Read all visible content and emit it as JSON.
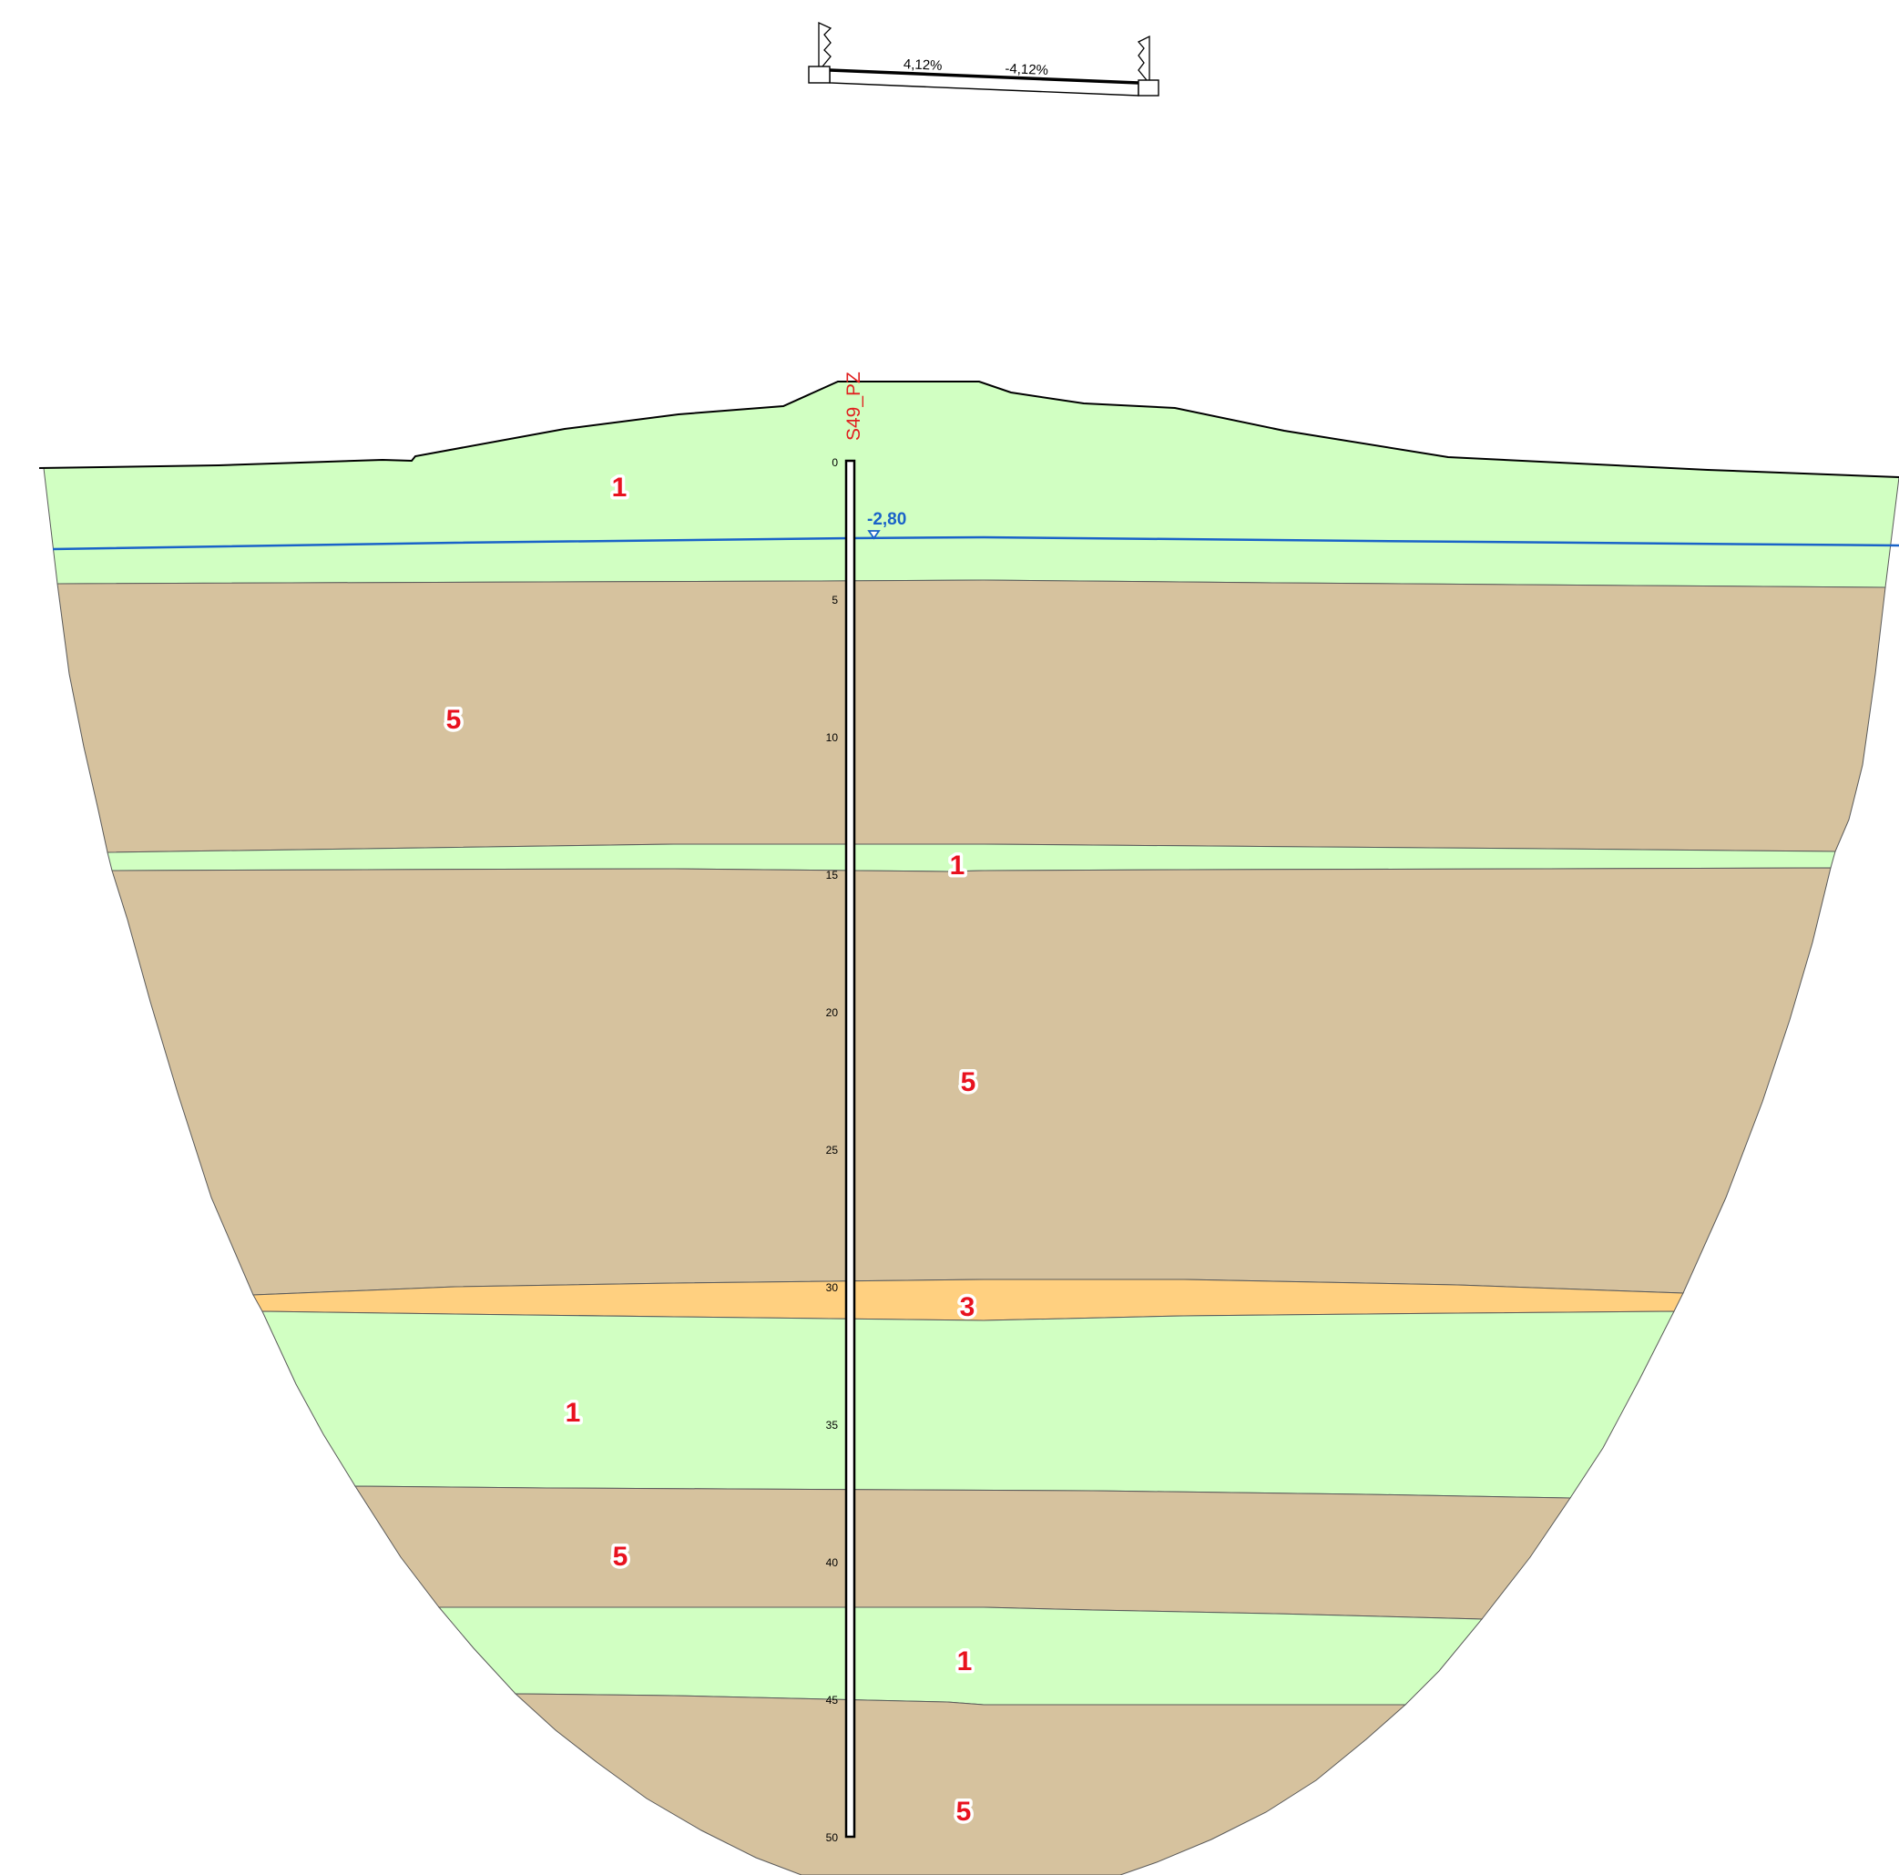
{
  "colors": {
    "layer_1": "#d1ffc2",
    "layer_3": "#ffd080",
    "layer_5": "#d6c29e",
    "groundwater": "#1a63c8",
    "label_red": "#e8121f"
  },
  "cross_section": {
    "slope_left": "4,12%",
    "slope_right": "-4,12%"
  },
  "borehole": {
    "name": "S49_PZ",
    "depth_ticks": [
      "0",
      "5",
      "10",
      "15",
      "20",
      "25",
      "30",
      "35",
      "40",
      "45",
      "50"
    ]
  },
  "groundwater": {
    "level_label": "-2,80"
  },
  "layer_labels": {
    "l1": "1",
    "l2": "5",
    "l3": "1",
    "l4": "5",
    "l5": "3",
    "l6": "1",
    "l7": "5",
    "l8": "1",
    "l9": "5"
  }
}
